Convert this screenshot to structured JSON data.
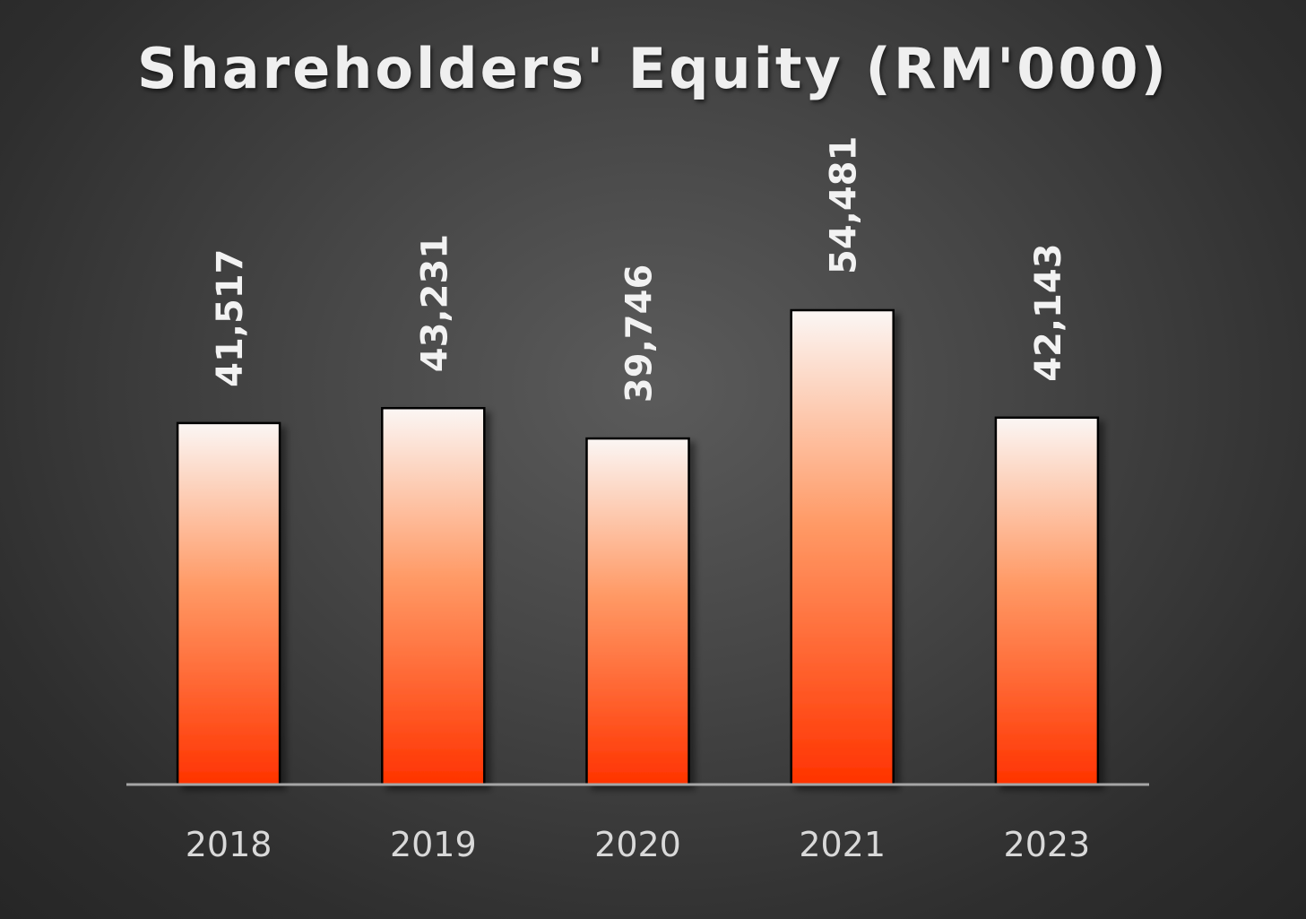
{
  "chart_data": {
    "type": "bar",
    "title": "Shareholders' Equity (RM'000)",
    "categories": [
      "2018",
      "2019",
      "2020",
      "2021",
      "2023"
    ],
    "values": [
      41517,
      43231,
      39746,
      54481,
      42143
    ],
    "value_labels": [
      "41,517",
      "43,231",
      "39,746",
      "54,481",
      "42,143"
    ],
    "xlabel": "",
    "ylabel": "",
    "ylim": [
      0,
      66000
    ],
    "grid": false,
    "legend": "none",
    "colors": {
      "bar_top": "#fbf6f4",
      "bar_mid": "#ff9a66",
      "bar_bottom": "#ff3300",
      "bar_stroke": "#000000",
      "axis": "#a6a6a6",
      "title": "#efefef"
    }
  }
}
